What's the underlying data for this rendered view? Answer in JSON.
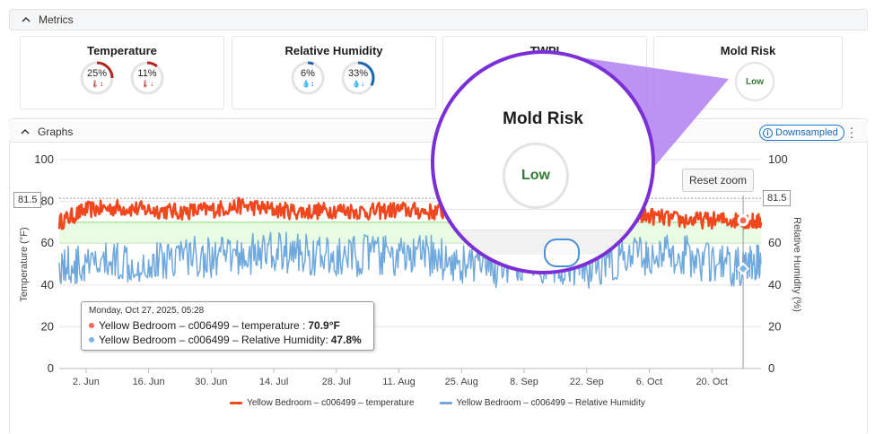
{
  "metrics_panel": {
    "title": "Metrics"
  },
  "cards": {
    "temperature": {
      "title": "Temperature",
      "gauges": [
        {
          "value": "25%",
          "fraction": 0.25,
          "color": "#b3261e",
          "icon": "thermometer-up-icon"
        },
        {
          "value": "11%",
          "fraction": 0.11,
          "color": "#b3261e",
          "icon": "thermometer-down-icon"
        }
      ]
    },
    "humidity": {
      "title": "Relative Humidity",
      "gauges": [
        {
          "value": "6%",
          "fraction": 0.06,
          "color": "#1a66b0",
          "icon": "drop-up-icon"
        },
        {
          "value": "33%",
          "fraction": 0.33,
          "color": "#1a66b0",
          "icon": "drop-down-icon"
        }
      ]
    },
    "twpi": {
      "title": "TWPI"
    },
    "mold": {
      "title": "Mold Risk",
      "value": "Low"
    }
  },
  "graphs_panel": {
    "title": "Graphs",
    "badge": "Downsampled"
  },
  "reset_zoom": "Reset zoom",
  "magnifier": {
    "title": "Mold Risk",
    "value": "Low"
  },
  "tooltip": {
    "date": "Monday, Oct 27, 2025, 05:28",
    "rows": [
      {
        "label": "Yellow Bedroom – c006499 – temperature : ",
        "value": "70.9°F",
        "color": "#f06a5a"
      },
      {
        "label": "Yellow Bedroom – c006499 – Relative Humidity: ",
        "value": "47.8%",
        "color": "#7cb4e6"
      }
    ]
  },
  "flags": {
    "left": "81.5",
    "right": "81.5"
  },
  "colors": {
    "temperature": "#f0471f",
    "humidity": "#6fa8dc",
    "band": "#e8fbe3",
    "band_line": "#8fdc77",
    "accent": "#7b2fd6"
  },
  "chart_data": {
    "type": "line",
    "left_axis": {
      "label": "Temperature (°F)",
      "ticks": [
        "0",
        "20",
        "40",
        "60",
        "80",
        "100"
      ],
      "range": [
        0,
        100
      ]
    },
    "right_axis": {
      "label": "Relative Humidity (%)",
      "ticks": [
        "0",
        "20",
        "40",
        "60",
        "80",
        "100"
      ],
      "range": [
        0,
        100
      ]
    },
    "x_axis": {
      "ticks": [
        "2. Jun",
        "16. Jun",
        "30. Jun",
        "14. Jul",
        "28. Jul",
        "11. Aug",
        "25. Aug",
        "8. Sep",
        "22. Sep",
        "6. Oct",
        "20. Oct"
      ],
      "range": [
        "2025-05-27",
        "2025-10-31"
      ]
    },
    "comfort_band": [
      60,
      70
    ],
    "threshold": 81.5,
    "series": [
      {
        "name": "Yellow Bedroom – c006499 – temperature",
        "axis": "left",
        "x": [
          "2025-05-27",
          "2025-06-02",
          "2025-06-09",
          "2025-06-16",
          "2025-06-23",
          "2025-06-30",
          "2025-07-07",
          "2025-07-14",
          "2025-07-21",
          "2025-07-28",
          "2025-08-04",
          "2025-08-11",
          "2025-08-18",
          "2025-08-25",
          "2025-09-01",
          "2025-09-08",
          "2025-09-15",
          "2025-09-22",
          "2025-09-29",
          "2025-10-06",
          "2025-10-13",
          "2025-10-20",
          "2025-10-27",
          "2025-10-31"
        ],
        "y": [
          70,
          76,
          77,
          76,
          75,
          76,
          78,
          76,
          75,
          76,
          75,
          76,
          75,
          75,
          74,
          74,
          73,
          72,
          72,
          73,
          71,
          71,
          71,
          70
        ]
      },
      {
        "name": "Yellow Bedroom – c006499 – Relative Humidity",
        "axis": "right",
        "x": [
          "2025-05-27",
          "2025-06-02",
          "2025-06-09",
          "2025-06-16",
          "2025-06-23",
          "2025-06-30",
          "2025-07-07",
          "2025-07-14",
          "2025-07-21",
          "2025-07-28",
          "2025-08-04",
          "2025-08-11",
          "2025-08-18",
          "2025-08-25",
          "2025-09-01",
          "2025-09-08",
          "2025-09-15",
          "2025-09-22",
          "2025-09-29",
          "2025-10-06",
          "2025-10-13",
          "2025-10-20",
          "2025-10-27",
          "2025-10-31"
        ],
        "y": [
          50,
          48,
          52,
          50,
          55,
          53,
          54,
          56,
          55,
          52,
          55,
          53,
          54,
          50,
          48,
          52,
          50,
          48,
          52,
          54,
          55,
          50,
          48,
          50
        ]
      }
    ]
  }
}
